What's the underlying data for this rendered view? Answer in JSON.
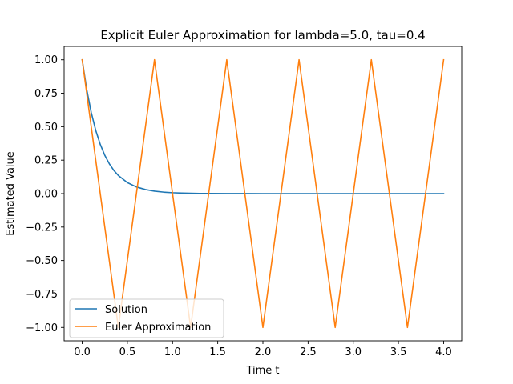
{
  "chart_data": {
    "type": "line",
    "title": "Explicit Euler Approximation for lambda=5.0, tau=0.4",
    "xlabel": "Time t",
    "ylabel": "Estimated Value",
    "xlim": [
      -0.2,
      4.2
    ],
    "ylim": [
      -1.1,
      1.1
    ],
    "xticks": [
      0.0,
      0.5,
      1.0,
      1.5,
      2.0,
      2.5,
      3.0,
      3.5,
      4.0
    ],
    "xtick_labels": [
      "0.0",
      "0.5",
      "1.0",
      "1.5",
      "2.0",
      "2.5",
      "3.0",
      "3.5",
      "4.0"
    ],
    "yticks": [
      1.0,
      0.75,
      0.5,
      0.25,
      0.0,
      -0.25,
      -0.5,
      -0.75,
      -1.0
    ],
    "ytick_labels": [
      "1.00",
      "0.75",
      "0.50",
      "0.25",
      "0.00",
      "−0.25",
      "−0.50",
      "−0.75",
      "−1.00"
    ],
    "grid": false,
    "legend_position": "lower-left",
    "series": [
      {
        "name": "Solution",
        "color": "#1f77b4",
        "x": [
          0.0,
          0.05,
          0.1,
          0.15,
          0.2,
          0.25,
          0.3,
          0.35,
          0.4,
          0.5,
          0.6,
          0.7,
          0.8,
          0.9,
          1.0,
          1.1,
          1.2,
          1.3,
          1.4,
          1.6,
          1.8,
          2.0,
          2.5,
          3.0,
          3.5,
          4.0
        ],
        "y": [
          1.0,
          0.7788,
          0.6065,
          0.4724,
          0.3679,
          0.2865,
          0.2231,
          0.1738,
          0.1353,
          0.0821,
          0.0498,
          0.0302,
          0.0183,
          0.0111,
          0.0067,
          0.0041,
          0.0025,
          0.0015,
          0.0009,
          0.0003,
          0.0001,
          0.0,
          0.0,
          0.0,
          0.0,
          0.0
        ]
      },
      {
        "name": "Euler Approximation",
        "color": "#ff7f0e",
        "x": [
          0.0,
          0.4,
          0.8,
          1.2,
          1.6,
          2.0,
          2.4,
          2.8,
          3.2,
          3.6,
          4.0
        ],
        "y": [
          1.0,
          -1.0,
          1.0,
          -1.0,
          1.0,
          -1.0,
          1.0,
          -1.0,
          1.0,
          -1.0,
          1.0
        ]
      }
    ]
  }
}
